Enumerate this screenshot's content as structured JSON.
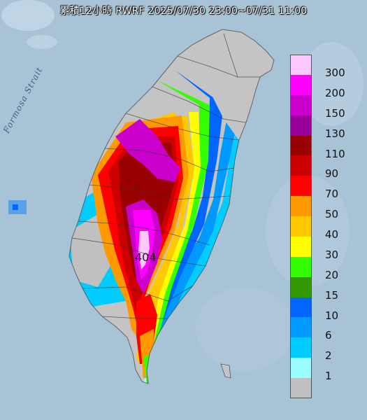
{
  "title": "累積12小時 RWRF 2025/07/30 23:00~07/31 11:00",
  "sea_label": "Formosa Strait",
  "max_value_label": "404",
  "legend": {
    "labels": [
      "300",
      "200",
      "150",
      "130",
      "110",
      "90",
      "70",
      "50",
      "40",
      "30",
      "20",
      "15",
      "10",
      "6",
      "2",
      "1"
    ],
    "colors": [
      "#fec8fe",
      "#ff00ff",
      "#cc00cc",
      "#990099",
      "#990000",
      "#cc0000",
      "#ff0000",
      "#ff9900",
      "#ffc800",
      "#ffff00",
      "#33ff00",
      "#339900",
      "#0066ff",
      "#0099ff",
      "#00ccff",
      "#9afefe",
      "#c0c0c0"
    ]
  },
  "colors": {
    "sea": "#a8c3d6",
    "land_gray": "#c4c4c4"
  }
}
